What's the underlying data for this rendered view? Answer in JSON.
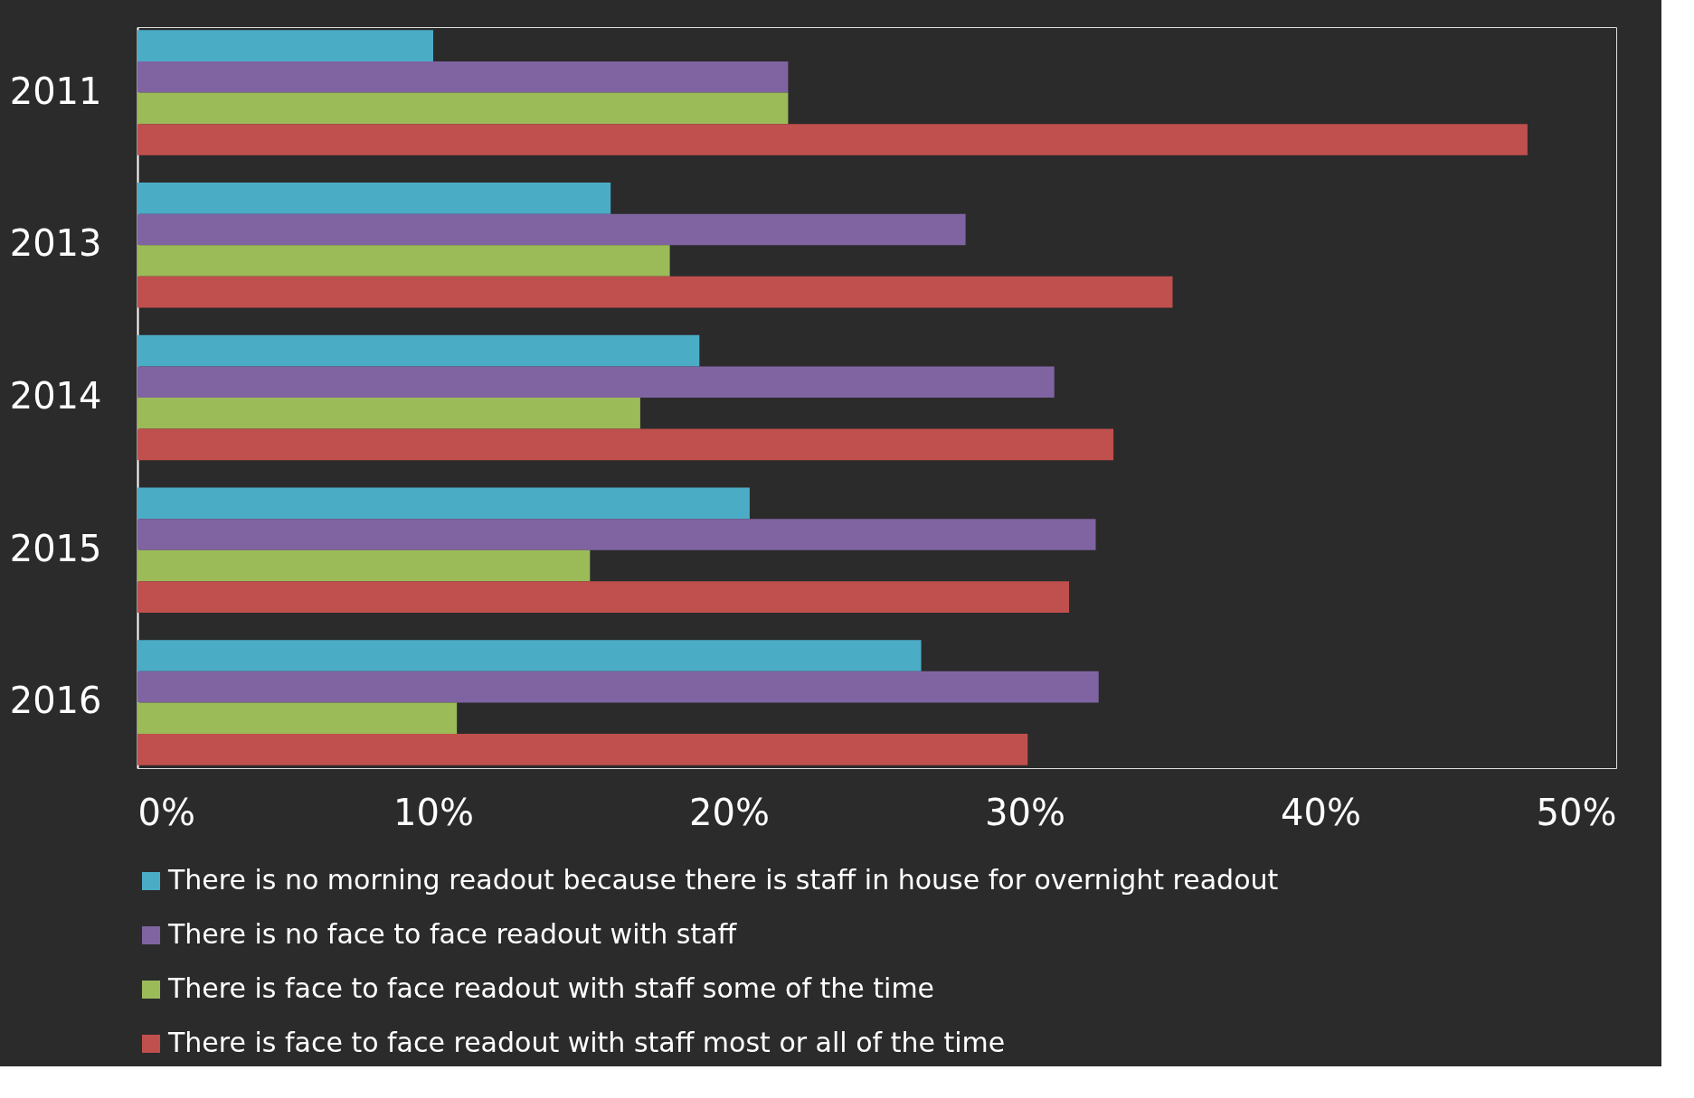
{
  "chart_data": {
    "type": "bar",
    "orientation": "horizontal",
    "categories": [
      "2011",
      "2013",
      "2014",
      "2015",
      "2016"
    ],
    "series": [
      {
        "name": "There is no morning readout because there is staff in house for overnight readout",
        "color": "#4bacc6",
        "values": [
          10,
          16,
          19,
          20.7,
          26.5
        ]
      },
      {
        "name": "There is no face to face readout with staff",
        "color": "#8064a2",
        "values": [
          22,
          28,
          31,
          32.4,
          32.5
        ]
      },
      {
        "name": "There is face to face readout with staff some of the time",
        "color": "#9bbb59",
        "values": [
          22,
          18,
          17,
          15.3,
          10.8
        ]
      },
      {
        "name": "There is face to face readout with staff most or all of the time",
        "color": "#c0504d",
        "values": [
          47,
          35,
          33,
          31.5,
          30.1
        ]
      }
    ],
    "xlim": [
      0,
      50
    ],
    "xticks": [
      {
        "value": 0,
        "label": "0%"
      },
      {
        "value": 10,
        "label": "10%"
      },
      {
        "value": 20,
        "label": "20%"
      },
      {
        "value": 30,
        "label": "30%"
      },
      {
        "value": 40,
        "label": "40%"
      },
      {
        "value": 50,
        "label": "50%"
      }
    ],
    "grid": false,
    "legend": "bottom"
  }
}
